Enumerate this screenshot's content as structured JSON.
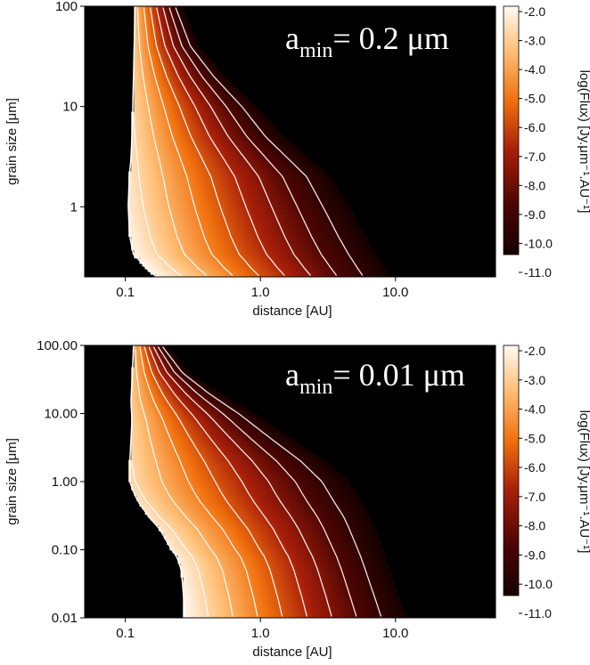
{
  "chart_data": [
    {
      "type": "heatmap",
      "annotation": {
        "base": "a",
        "sub": "min",
        "rest": "= 0.2 μm"
      },
      "xlabel": "distance [AU]",
      "ylabel": "grain size [μm]",
      "xscale": "log",
      "yscale": "log",
      "xlim": [
        0.05,
        55
      ],
      "ylim": [
        0.2,
        100
      ],
      "xticks": [
        {
          "v": 0.1,
          "t": "0.1"
        },
        {
          "v": 1,
          "t": "1.0"
        },
        {
          "v": 10,
          "t": "10.0"
        }
      ],
      "yticks": [
        {
          "v": 1,
          "t": "1"
        },
        {
          "v": 10,
          "t": "10"
        },
        {
          "v": 100,
          "t": "100"
        }
      ],
      "inner_edge": [
        [
          0.2,
          0.17
        ],
        [
          0.25,
          0.14
        ],
        [
          0.3,
          0.125
        ],
        [
          0.33,
          0.115
        ],
        [
          0.5,
          0.108
        ],
        [
          1.0,
          0.105
        ],
        [
          2.0,
          0.107
        ],
        [
          3.0,
          0.11
        ],
        [
          5.0,
          0.112
        ],
        [
          20,
          0.115
        ],
        [
          100,
          0.118
        ]
      ],
      "outer_edge": [
        [
          0.2,
          9.0
        ],
        [
          0.5,
          6.0
        ],
        [
          1.0,
          4.5
        ],
        [
          2.0,
          3.3
        ],
        [
          5.0,
          1.5
        ],
        [
          10,
          0.95
        ],
        [
          20,
          0.55
        ],
        [
          40,
          0.35
        ],
        [
          100,
          0.26
        ]
      ],
      "log_flux_range": [
        -11.0,
        -2.0
      ],
      "colorbar": {
        "label": "log(Flux) [Jy.μm⁻¹.AU⁻¹]",
        "ticks": [
          {
            "v": -2,
            "t": "-2.0"
          },
          {
            "v": -3,
            "t": "-3.0"
          },
          {
            "v": -4,
            "t": "-4.0"
          },
          {
            "v": -5,
            "t": "-5.0"
          },
          {
            "v": -6,
            "t": "-6.0"
          },
          {
            "v": -7,
            "t": "-7.0"
          },
          {
            "v": -8,
            "t": "-8.0"
          },
          {
            "v": -9,
            "t": "-9.0"
          },
          {
            "v": -10,
            "t": "-10.0"
          },
          {
            "v": -11,
            "t": "-11.0"
          }
        ]
      },
      "contour_levels": [
        -2,
        -3,
        -4,
        -5,
        -6,
        -7,
        -8,
        -9,
        -10
      ]
    },
    {
      "type": "heatmap",
      "annotation": {
        "base": "a",
        "sub": "min",
        "rest": "= 0.01 μm"
      },
      "xlabel": "distance [AU]",
      "ylabel": "grain size [μm]",
      "xscale": "log",
      "yscale": "log",
      "xlim": [
        0.05,
        55
      ],
      "ylim": [
        0.01,
        100
      ],
      "xticks": [
        {
          "v": 0.1,
          "t": "0.1"
        },
        {
          "v": 1,
          "t": "1.0"
        },
        {
          "v": 10,
          "t": "10.0"
        }
      ],
      "yticks": [
        {
          "v": 0.01,
          "t": "0.01"
        },
        {
          "v": 0.1,
          "t": "0.10"
        },
        {
          "v": 1,
          "t": "1.00"
        },
        {
          "v": 10,
          "t": "10.00"
        },
        {
          "v": 100,
          "t": "100.00"
        }
      ],
      "inner_edge": [
        [
          0.01,
          0.27
        ],
        [
          0.02,
          0.27
        ],
        [
          0.05,
          0.26
        ],
        [
          0.08,
          0.24
        ],
        [
          0.1,
          0.22
        ],
        [
          0.2,
          0.18
        ],
        [
          0.3,
          0.15
        ],
        [
          0.5,
          0.125
        ],
        [
          0.7,
          0.115
        ],
        [
          1.0,
          0.108
        ],
        [
          2.0,
          0.108
        ],
        [
          4.0,
          0.11
        ],
        [
          8.0,
          0.112
        ],
        [
          15,
          0.11
        ],
        [
          30,
          0.112
        ],
        [
          100,
          0.115
        ]
      ],
      "outer_edge": [
        [
          0.01,
          12.0
        ],
        [
          0.05,
          9.0
        ],
        [
          0.1,
          8.0
        ],
        [
          0.3,
          6.5
        ],
        [
          1.0,
          4.5
        ],
        [
          2.0,
          3.0
        ],
        [
          5.0,
          1.5
        ],
        [
          10,
          0.9
        ],
        [
          20,
          0.5
        ],
        [
          40,
          0.3
        ],
        [
          100,
          0.2
        ]
      ],
      "log_flux_range": [
        -11.0,
        -2.0
      ],
      "colorbar": {
        "label": "log(Flux) [Jy.μm⁻¹.AU⁻¹]",
        "ticks": [
          {
            "v": -2,
            "t": "-2.0"
          },
          {
            "v": -3,
            "t": "-3.0"
          },
          {
            "v": -4,
            "t": "-4.0"
          },
          {
            "v": -5,
            "t": "-5.0"
          },
          {
            "v": -6,
            "t": "-6.0"
          },
          {
            "v": -7,
            "t": "-7.0"
          },
          {
            "v": -8,
            "t": "-8.0"
          },
          {
            "v": -9,
            "t": "-9.0"
          },
          {
            "v": -10,
            "t": "-10.0"
          },
          {
            "v": -11,
            "t": "-11.0"
          }
        ]
      },
      "contour_levels": [
        -2,
        -3,
        -4,
        -5,
        -6,
        -7,
        -8,
        -9,
        -10
      ]
    }
  ]
}
